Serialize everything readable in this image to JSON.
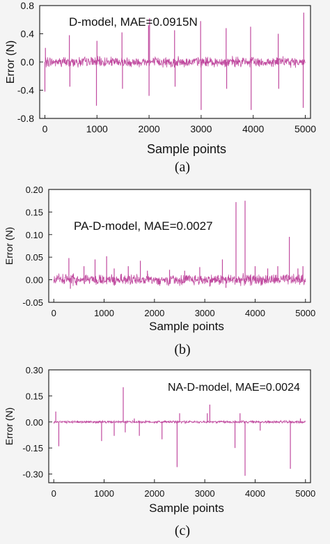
{
  "trace_color": "#c04a9f",
  "chart_data": [
    {
      "type": "line",
      "panel_label": "(a)",
      "annotation": "D-model, MAE=0.0915N",
      "xlabel": "Sample points",
      "ylabel": "Error (N)",
      "xlim": [
        -100,
        5100
      ],
      "ylim": [
        -0.8,
        0.8
      ],
      "xticks": [
        0,
        1000,
        2000,
        3000,
        4000,
        5000
      ],
      "xtick_labels": [
        "0",
        "1000",
        "2000",
        "3000",
        "4000",
        "5000"
      ],
      "yticks": [
        -0.8,
        -0.4,
        0.0,
        0.4,
        0.8
      ],
      "ytick_labels": [
        "-0.8",
        "-0.4",
        "0.0",
        "0.4",
        "0.8"
      ],
      "baseline_noise": 0.06,
      "spikes": [
        {
          "x": 0,
          "y": -0.42
        },
        {
          "x": 10,
          "y": 0.2
        },
        {
          "x": 470,
          "y": 0.38
        },
        {
          "x": 480,
          "y": -0.35
        },
        {
          "x": 990,
          "y": -0.62
        },
        {
          "x": 1000,
          "y": 0.3
        },
        {
          "x": 1480,
          "y": 0.42
        },
        {
          "x": 1490,
          "y": -0.38
        },
        {
          "x": 1990,
          "y": 0.52
        },
        {
          "x": 2000,
          "y": -0.48
        },
        {
          "x": 2010,
          "y": 0.62
        },
        {
          "x": 2490,
          "y": 0.45
        },
        {
          "x": 2500,
          "y": -0.35
        },
        {
          "x": 2990,
          "y": 0.58
        },
        {
          "x": 3000,
          "y": -0.68
        },
        {
          "x": 3480,
          "y": 0.48
        },
        {
          "x": 3490,
          "y": -0.38
        },
        {
          "x": 3950,
          "y": 0.5
        },
        {
          "x": 3960,
          "y": -0.68
        },
        {
          "x": 4480,
          "y": 0.4
        },
        {
          "x": 4490,
          "y": -0.38
        },
        {
          "x": 4960,
          "y": -0.65
        },
        {
          "x": 4970,
          "y": 0.7
        }
      ]
    },
    {
      "type": "line",
      "panel_label": "(b)",
      "annotation": "PA-D-model,  MAE=0.0027",
      "xlabel": "Sample points",
      "ylabel": "Error (N)",
      "xlim": [
        -100,
        5100
      ],
      "ylim": [
        -0.05,
        0.2
      ],
      "xticks": [
        0,
        1000,
        2000,
        3000,
        4000,
        5000
      ],
      "xtick_labels": [
        "0",
        "1000",
        "2000",
        "3000",
        "4000",
        "5000"
      ],
      "yticks": [
        -0.05,
        0.0,
        0.05,
        0.1,
        0.15,
        0.2
      ],
      "ytick_labels": [
        "-0.05",
        "0.00",
        "0.05",
        "0.10",
        "0.15",
        "0.20"
      ],
      "baseline_noise": 0.01,
      "spikes": [
        {
          "x": 300,
          "y": 0.048
        },
        {
          "x": 330,
          "y": -0.02
        },
        {
          "x": 600,
          "y": 0.03
        },
        {
          "x": 820,
          "y": 0.045
        },
        {
          "x": 1050,
          "y": 0.052
        },
        {
          "x": 1200,
          "y": 0.025
        },
        {
          "x": 1480,
          "y": 0.03
        },
        {
          "x": 1720,
          "y": 0.042
        },
        {
          "x": 1860,
          "y": 0.02
        },
        {
          "x": 2300,
          "y": 0.022
        },
        {
          "x": 2600,
          "y": 0.02
        },
        {
          "x": 2900,
          "y": 0.028
        },
        {
          "x": 3100,
          "y": -0.015
        },
        {
          "x": 3350,
          "y": 0.045
        },
        {
          "x": 3420,
          "y": -0.018
        },
        {
          "x": 3620,
          "y": 0.172
        },
        {
          "x": 3800,
          "y": 0.175
        },
        {
          "x": 4000,
          "y": 0.03
        },
        {
          "x": 4250,
          "y": 0.025
        },
        {
          "x": 4450,
          "y": 0.03
        },
        {
          "x": 4680,
          "y": 0.095
        },
        {
          "x": 4850,
          "y": 0.025
        },
        {
          "x": 4950,
          "y": 0.03
        }
      ]
    },
    {
      "type": "line",
      "panel_label": "(c)",
      "annotation": "NA-D-model,  MAE=0.0024",
      "xlabel": "Sample points",
      "ylabel": "Error (N)",
      "xlim": [
        -100,
        5100
      ],
      "ylim": [
        -0.35,
        0.3
      ],
      "xticks": [
        0,
        1000,
        2000,
        3000,
        4000,
        5000
      ],
      "xtick_labels": [
        "0",
        "1000",
        "2000",
        "3000",
        "4000",
        "5000"
      ],
      "yticks": [
        -0.3,
        -0.15,
        0.0,
        0.15,
        0.3
      ],
      "ytick_labels": [
        "-0.30",
        "-0.15",
        "0.00",
        "0.15",
        "0.30"
      ],
      "baseline_noise": 0.006,
      "spikes": [
        {
          "x": 40,
          "y": 0.06
        },
        {
          "x": 100,
          "y": -0.14
        },
        {
          "x": 950,
          "y": -0.11
        },
        {
          "x": 1200,
          "y": -0.08
        },
        {
          "x": 1380,
          "y": 0.2
        },
        {
          "x": 1420,
          "y": -0.06
        },
        {
          "x": 1600,
          "y": 0.02
        },
        {
          "x": 1700,
          "y": -0.08
        },
        {
          "x": 2150,
          "y": -0.1
        },
        {
          "x": 2450,
          "y": -0.26
        },
        {
          "x": 2500,
          "y": 0.05
        },
        {
          "x": 3050,
          "y": 0.05
        },
        {
          "x": 3100,
          "y": 0.1
        },
        {
          "x": 3600,
          "y": -0.15
        },
        {
          "x": 3700,
          "y": 0.05
        },
        {
          "x": 3800,
          "y": -0.31
        },
        {
          "x": 4100,
          "y": -0.05
        },
        {
          "x": 4700,
          "y": -0.27
        },
        {
          "x": 4900,
          "y": 0.02
        }
      ]
    }
  ]
}
